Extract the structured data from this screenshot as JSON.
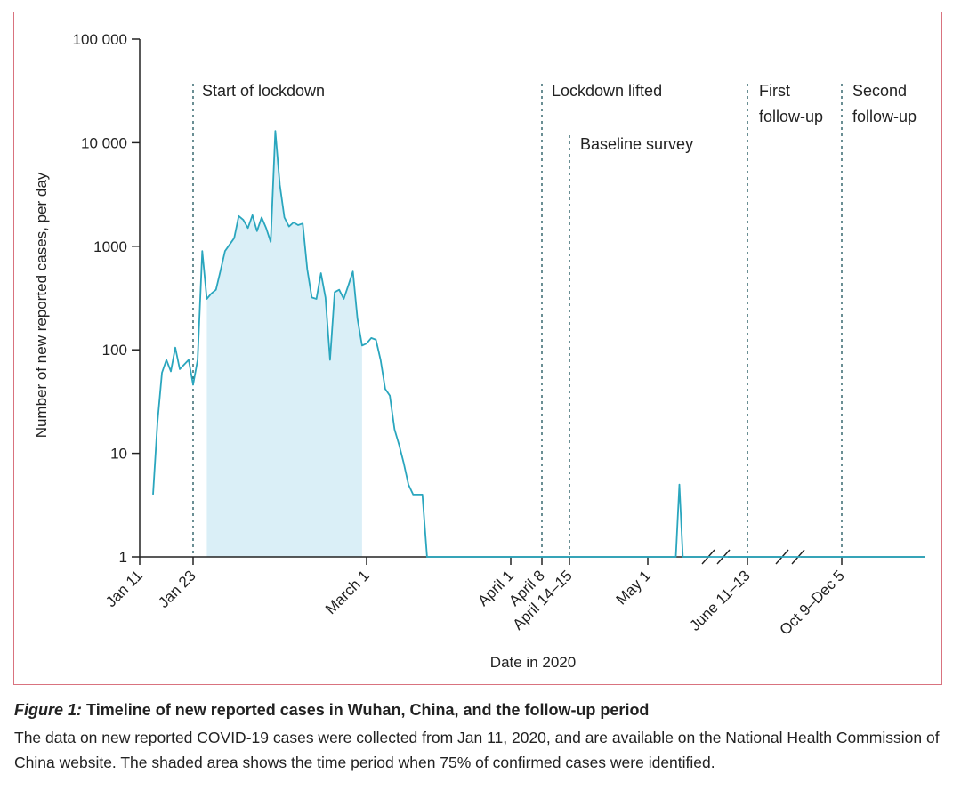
{
  "chart_data": {
    "type": "line",
    "ylabel": "Number of new reported cases, per day",
    "xlabel": "Date in 2020",
    "yscale": "log",
    "ylim": [
      1,
      100000
    ],
    "y_ticks": [
      {
        "value": 1,
        "label": "1"
      },
      {
        "value": 10,
        "label": "10"
      },
      {
        "value": 100,
        "label": "100"
      },
      {
        "value": 1000,
        "label": "1000"
      },
      {
        "value": 10000,
        "label": "10 000"
      },
      {
        "value": 100000,
        "label": "100 000"
      }
    ],
    "x_ticks": [
      "Jan 11",
      "Jan 23",
      "March 1",
      "April 1",
      "April 8",
      "April 14–15",
      "May 1",
      "June 11–13",
      "Oct 9–Dec 5"
    ],
    "axis_breaks": [
      "between May and June 11–13",
      "between June 11–13 and Oct 9–Dec 5"
    ],
    "events": [
      {
        "label": "Start of lockdown",
        "date": "Jan 23"
      },
      {
        "label": "Lockdown lifted",
        "date": "April 8"
      },
      {
        "label": "Baseline survey",
        "date": "April 14–15"
      },
      {
        "label": "First follow-up",
        "date": "June 11–13"
      },
      {
        "label": "Second follow-up",
        "date": "Oct 9–Dec 5"
      }
    ],
    "shaded_region": {
      "start": "Jan 26",
      "end": "Feb 29",
      "meaning": "time period when 75% of confirmed cases were identified"
    },
    "series": [
      {
        "points": [
          [
            "Jan 14",
            4
          ],
          [
            "Jan 15",
            20
          ],
          [
            "Jan 16",
            60
          ],
          [
            "Jan 17",
            80
          ],
          [
            "Jan 18",
            62
          ],
          [
            "Jan 19",
            105
          ],
          [
            "Jan 20",
            65
          ],
          [
            "Jan 21",
            72
          ],
          [
            "Jan 22",
            80
          ],
          [
            "Jan 23",
            46
          ],
          [
            "Jan 24",
            80
          ],
          [
            "Jan 25",
            900
          ],
          [
            "Jan 26",
            310
          ],
          [
            "Jan 27",
            350
          ],
          [
            "Jan 28",
            380
          ],
          [
            "Jan 29",
            580
          ],
          [
            "Jan 30",
            900
          ],
          [
            "Jan 31",
            1040
          ],
          [
            "Feb 1",
            1200
          ],
          [
            "Feb 2",
            1960
          ],
          [
            "Feb 3",
            1800
          ],
          [
            "Feb 4",
            1500
          ],
          [
            "Feb 5",
            2000
          ],
          [
            "Feb 6",
            1400
          ],
          [
            "Feb 7",
            1900
          ],
          [
            "Feb 8",
            1500
          ],
          [
            "Feb 9",
            1100
          ],
          [
            "Feb 10",
            13000
          ],
          [
            "Feb 11",
            3900
          ],
          [
            "Feb 12",
            1900
          ],
          [
            "Feb 13",
            1550
          ],
          [
            "Feb 14",
            1700
          ],
          [
            "Feb 15",
            1600
          ],
          [
            "Feb 16",
            1660
          ],
          [
            "Feb 17",
            600
          ],
          [
            "Feb 18",
            320
          ],
          [
            "Feb 19",
            310
          ],
          [
            "Feb 20",
            550
          ],
          [
            "Feb 21",
            320
          ],
          [
            "Feb 22",
            80
          ],
          [
            "Feb 23",
            360
          ],
          [
            "Feb 24",
            380
          ],
          [
            "Feb 25",
            310
          ],
          [
            "Feb 26",
            420
          ],
          [
            "Feb 27",
            570
          ],
          [
            "Feb 28",
            200
          ],
          [
            "Feb 29",
            110
          ],
          [
            "Mar 1",
            115
          ],
          [
            "Mar 2",
            130
          ],
          [
            "Mar 3",
            125
          ],
          [
            "Mar 4",
            80
          ],
          [
            "Mar 5",
            42
          ],
          [
            "Mar 6",
            36
          ],
          [
            "Mar 7",
            17
          ],
          [
            "Mar 8",
            12
          ],
          [
            "Mar 9",
            8
          ],
          [
            "Mar 10",
            5
          ],
          [
            "Mar 11",
            4
          ],
          [
            "Mar 12",
            4
          ],
          [
            "Mar 13",
            4
          ],
          [
            "Mar 14",
            1
          ],
          [
            "May 9",
            1
          ],
          [
            "May 10",
            5
          ],
          [
            "May 11",
            1
          ],
          [
            "Dec 5",
            1
          ]
        ]
      }
    ]
  },
  "caption": {
    "label": "Figure 1:",
    "title": "Timeline of new reported cases in Wuhan, China, and the follow-up period",
    "body": "The data on new reported COVID-19 cases were collected from Jan 11, 2020, and are available on the National Health Commission of China website. The shaded area shows the time period when 75% of confirmed cases were identified."
  },
  "colors": {
    "line": "#2aa6be",
    "shade": "#daeff7",
    "frame": "#d9737f",
    "axis": "#222222",
    "event_line": "#2a5f66"
  }
}
